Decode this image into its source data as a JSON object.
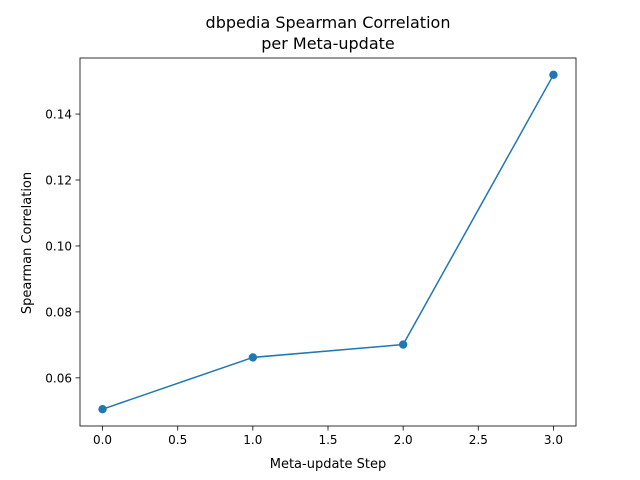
{
  "chart_data": {
    "type": "line",
    "title_lines": [
      "dbpedia Spearman Correlation",
      "per Meta-update"
    ],
    "xlabel": "Meta-update Step",
    "ylabel": "Spearman Correlation",
    "x": [
      0,
      1,
      2,
      3
    ],
    "series": [
      {
        "values": [
          0.0505,
          0.0662,
          0.0701,
          0.1519
        ],
        "color": "#1f77b4",
        "marker": "circle"
      }
    ],
    "xlim": [
      -0.15,
      3.15
    ],
    "ylim": [
      0.0454,
      0.157
    ],
    "x_ticks": [
      0.0,
      0.5,
      1.0,
      1.5,
      2.0,
      2.5,
      3.0
    ],
    "x_tick_labels": [
      "0.0",
      "0.5",
      "1.0",
      "1.5",
      "2.0",
      "2.5",
      "3.0"
    ],
    "y_ticks": [
      0.06,
      0.08,
      0.1,
      0.12,
      0.14
    ],
    "y_tick_labels": [
      "0.06",
      "0.08",
      "0.10",
      "0.12",
      "0.14"
    ],
    "grid": false,
    "legend": "none"
  }
}
